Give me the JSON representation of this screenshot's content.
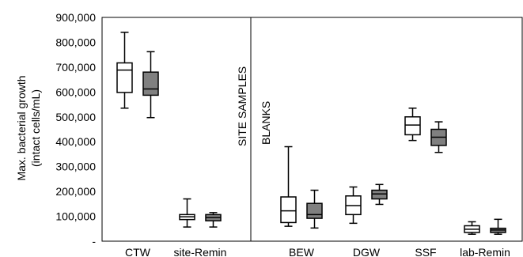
{
  "chart_data": {
    "type": "box",
    "ylabel_line1": "Max. bacterial growth",
    "ylabel_line2": "(intact cells/mL)",
    "ylim": [
      0,
      900000
    ],
    "y_ticks": [
      0,
      100000,
      200000,
      300000,
      400000,
      500000,
      600000,
      700000,
      800000,
      900000
    ],
    "y_tick_labels": [
      "-",
      "100,000",
      "200,000",
      "300,000",
      "400,000",
      "500,000",
      "600,000",
      "700,000",
      "800,000",
      "900,000"
    ],
    "categories": [
      "CTW",
      "site-Remin",
      "BEW",
      "DGW",
      "SSF",
      "lab-Remin"
    ],
    "series_colors": {
      "white": "#ffffff",
      "grey": "#808080"
    },
    "boxes": [
      {
        "category": "CTW",
        "fill": "white",
        "min": 535000,
        "q1": 598000,
        "median": 688000,
        "q3": 717000,
        "max": 840000
      },
      {
        "category": "CTW",
        "fill": "grey",
        "min": 497000,
        "q1": 587000,
        "median": 612000,
        "q3": 680000,
        "max": 762000
      },
      {
        "category": "site-Remin",
        "fill": "white",
        "min": 57000,
        "q1": 87000,
        "median": 98000,
        "q3": 107000,
        "max": 170000
      },
      {
        "category": "site-Remin",
        "fill": "grey",
        "min": 57000,
        "q1": 82000,
        "median": 95000,
        "q3": 107000,
        "max": 115000
      },
      {
        "category": "BEW",
        "fill": "white",
        "min": 60000,
        "q1": 75000,
        "median": 122000,
        "q3": 178000,
        "max": 380000
      },
      {
        "category": "BEW",
        "fill": "grey",
        "min": 53000,
        "q1": 92000,
        "median": 107000,
        "q3": 152000,
        "max": 205000
      },
      {
        "category": "DGW",
        "fill": "white",
        "min": 72000,
        "q1": 107000,
        "median": 143000,
        "q3": 182000,
        "max": 218000
      },
      {
        "category": "DGW",
        "fill": "grey",
        "min": 148000,
        "q1": 170000,
        "median": 190000,
        "q3": 205000,
        "max": 228000
      },
      {
        "category": "SSF",
        "fill": "white",
        "min": 405000,
        "q1": 428000,
        "median": 467000,
        "q3": 500000,
        "max": 535000
      },
      {
        "category": "SSF",
        "fill": "grey",
        "min": 357000,
        "q1": 385000,
        "median": 418000,
        "q3": 450000,
        "max": 480000
      },
      {
        "category": "lab-Remin",
        "fill": "white",
        "min": 28000,
        "q1": 35000,
        "median": 48000,
        "q3": 62000,
        "max": 78000
      },
      {
        "category": "lab-Remin",
        "fill": "grey",
        "min": 28000,
        "q1": 35000,
        "median": 45000,
        "q3": 52000,
        "max": 88000
      }
    ],
    "annotations": {
      "site_samples": "SITE    SAMPLES",
      "blanks": "BLANKS"
    },
    "grid": false,
    "legend": "none"
  }
}
